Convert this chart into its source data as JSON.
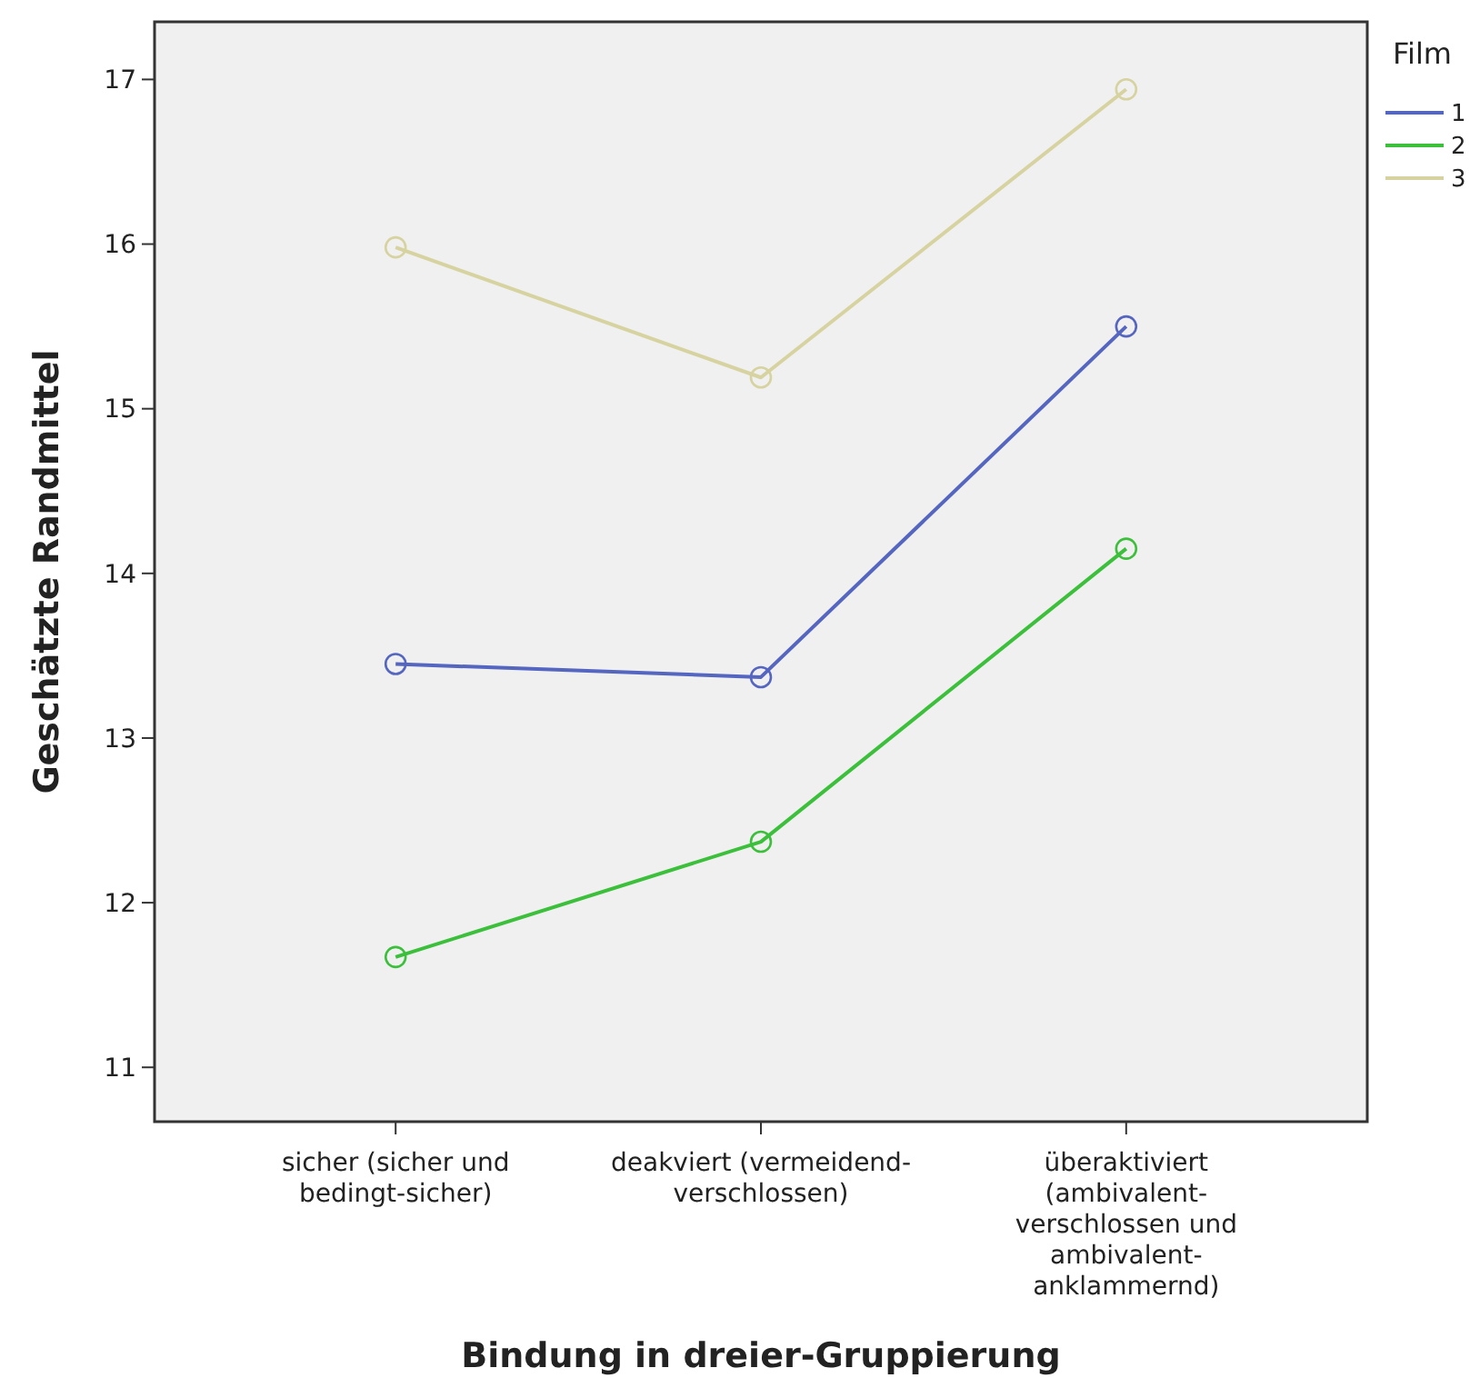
{
  "chart_data": {
    "type": "line",
    "xlabel": "Bindung in dreier-Gruppierung",
    "ylabel": "Geschätzte Randmittel",
    "legend_title": "Film",
    "legend": "right",
    "marker": "circle",
    "grid": false,
    "categories": [
      "sicher (sicher und bedingt-sicher)",
      "deakviert (vermeidend-verschlossen)",
      "überaktiviert (ambivalent-verschlossen und ambivalent-anklammernd)"
    ],
    "ylim": [
      10.67,
      17.35
    ],
    "yticks": [
      11,
      12,
      13,
      14,
      15,
      16,
      17
    ],
    "series": [
      {
        "name": "1",
        "color": "#5566c0",
        "values": [
          13.45,
          13.37,
          15.5
        ]
      },
      {
        "name": "2",
        "color": "#3cc03c",
        "values": [
          11.67,
          12.37,
          14.15
        ]
      },
      {
        "name": "3",
        "color": "#d6d3a0",
        "values": [
          15.98,
          15.19,
          16.94
        ]
      }
    ]
  }
}
